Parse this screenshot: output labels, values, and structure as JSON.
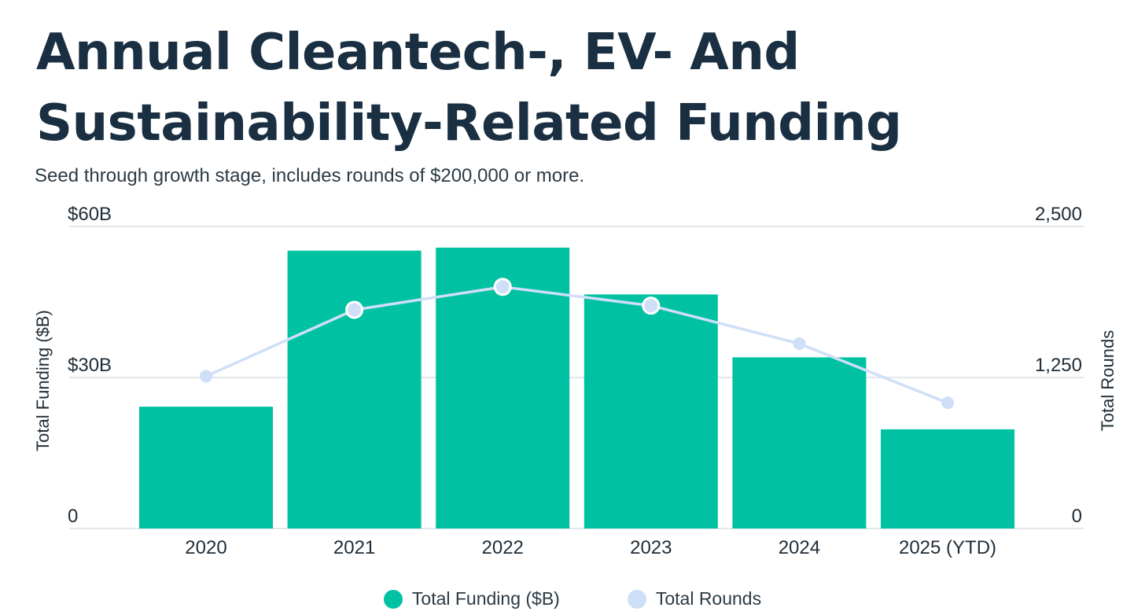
{
  "title_line1": "Annual Cleantech-, EV- And",
  "title_line2": "Sustainability-Related Funding",
  "subtitle": "Seed through growth stage, includes rounds of $200,000 or more.",
  "colors": {
    "bar": "#00c2a3",
    "line": "#cfdff7",
    "grid": "#e3e7eb",
    "text": "#1a3042"
  },
  "chart_data": {
    "type": "bar",
    "title": "Annual Cleantech-, EV- And Sustainability-Related Funding",
    "categories": [
      "2020",
      "2021",
      "2022",
      "2023",
      "2024",
      "2025 (YTD)"
    ],
    "series": [
      {
        "name": "Total Funding ($B)",
        "type": "bar",
        "axis": "left",
        "values": [
          24.2,
          55.2,
          55.8,
          46.5,
          34.0,
          19.7
        ]
      },
      {
        "name": "Total Rounds",
        "type": "line",
        "axis": "right",
        "values": [
          1260,
          1810,
          2000,
          1845,
          1530,
          1040
        ]
      }
    ],
    "ylabel_left": "Total Funding ($B)",
    "ylabel_right": "Total Rounds",
    "ylim_left": [
      0,
      60
    ],
    "ylim_right": [
      0,
      2500
    ],
    "yticks_left": [
      "0",
      "$30B",
      "$60B"
    ],
    "yticks_right": [
      "0",
      "1,250",
      "2,500"
    ],
    "legend_position": "bottom-center"
  }
}
